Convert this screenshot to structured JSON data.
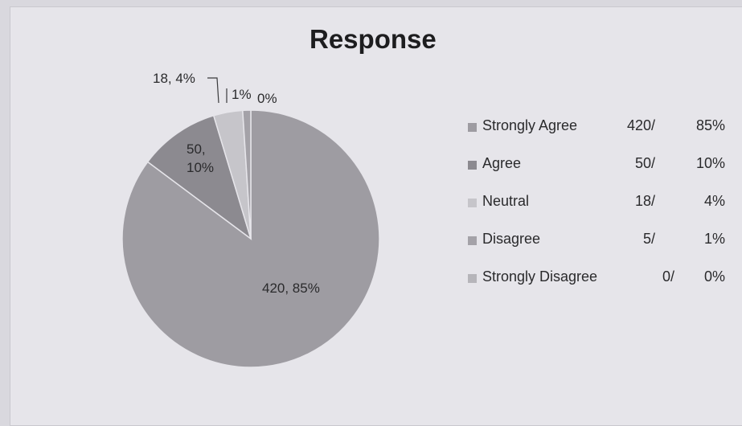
{
  "chart_data": {
    "type": "pie",
    "title": "Response",
    "categories": [
      "Strongly Agree",
      "Agree",
      "Neutral",
      "Disagree",
      "Strongly Disagree"
    ],
    "values": [
      420,
      50,
      18,
      5,
      0
    ],
    "percents": [
      "85%",
      "10%",
      "4%",
      "1%",
      "0%"
    ],
    "colors": [
      "#9e9ca2",
      "#8c8a90",
      "#c6c5ca",
      "#a4a2a8",
      "#b6b5ba"
    ],
    "data_labels": {
      "strongly_agree": "420, 85%",
      "agree_line1": "50,",
      "agree_line2": "10%",
      "neutral": "18, 4%",
      "disagree": "1%",
      "strongly_disagree": "0%"
    },
    "legend": [
      {
        "label": "Strongly Agree",
        "count": "420/",
        "percent": "85%"
      },
      {
        "label": "Agree",
        "count": "50/",
        "percent": "10%"
      },
      {
        "label": "Neutral",
        "count": "18/",
        "percent": "4%"
      },
      {
        "label": "Disagree",
        "count": "5/",
        "percent": "1%"
      },
      {
        "label": "Strongly Disagree",
        "count": "0/",
        "percent": "0%"
      }
    ],
    "legend_position": "right"
  }
}
